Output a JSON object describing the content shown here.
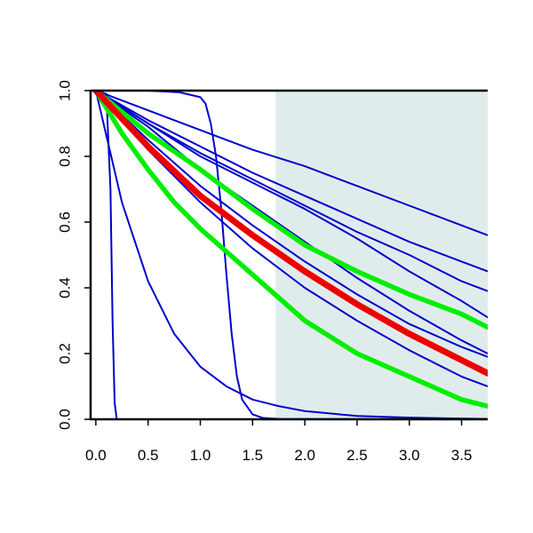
{
  "chart_data": {
    "type": "line",
    "title": "",
    "xlabel": "",
    "ylabel": "",
    "xlim": [
      -0.05,
      3.75
    ],
    "ylim": [
      0,
      1.0
    ],
    "grid": false,
    "shaded_region": {
      "x_start": 1.72,
      "x_end": 3.75,
      "color": "#e0ecec"
    },
    "x_ticks": [
      0.0,
      0.5,
      1.0,
      1.5,
      2.0,
      2.5,
      3.0,
      3.5
    ],
    "x_tick_labels": [
      "0.0",
      "0.5",
      "1.0",
      "1.5",
      "2.0",
      "2.5",
      "3.0",
      "3.5"
    ],
    "y_ticks": [
      0.0,
      0.2,
      0.4,
      0.6,
      0.8,
      1.0
    ],
    "y_tick_labels": [
      "0.0",
      "0.2",
      "0.4",
      "0.6",
      "0.8",
      "1.0"
    ],
    "series": [
      {
        "color": "#0000cc",
        "width": "thin",
        "x": [
          0,
          0.1,
          0.14,
          0.16,
          0.18,
          0.2,
          3.75
        ],
        "y": [
          1.0,
          0.99,
          0.7,
          0.3,
          0.05,
          0.0,
          0.0
        ]
      },
      {
        "color": "#0000cc",
        "width": "thin",
        "x": [
          0,
          0.25,
          0.5,
          0.75,
          1.0,
          1.25,
          1.5,
          1.75,
          2.0,
          2.5,
          3.0,
          3.75
        ],
        "y": [
          1.0,
          0.66,
          0.42,
          0.26,
          0.16,
          0.1,
          0.06,
          0.04,
          0.025,
          0.01,
          0.005,
          0.001
        ]
      },
      {
        "color": "#0000cc",
        "width": "thin",
        "x": [
          0,
          0.5,
          0.8,
          1.0,
          1.05,
          1.1,
          1.15,
          1.2,
          1.25,
          1.3,
          1.35,
          1.4,
          1.5,
          1.6,
          1.75,
          3.75
        ],
        "y": [
          1.0,
          1.0,
          0.995,
          0.98,
          0.96,
          0.9,
          0.8,
          0.64,
          0.44,
          0.26,
          0.13,
          0.06,
          0.015,
          0.004,
          0.001,
          0.0
        ]
      },
      {
        "color": "#0000cc",
        "width": "thin",
        "x": [
          0,
          0.5,
          1.0,
          1.5,
          2.0,
          2.5,
          3.0,
          3.5,
          3.75
        ],
        "y": [
          1.0,
          0.9,
          0.8,
          0.72,
          0.64,
          0.55,
          0.45,
          0.36,
          0.31
        ]
      },
      {
        "color": "#0000cc",
        "width": "thin",
        "x": [
          0,
          0.5,
          1.0,
          1.5,
          2.0,
          2.5,
          3.0,
          3.5,
          3.75
        ],
        "y": [
          1.0,
          0.85,
          0.71,
          0.59,
          0.48,
          0.38,
          0.29,
          0.22,
          0.19
        ]
      },
      {
        "color": "#0000cc",
        "width": "thin",
        "x": [
          0,
          0.5,
          1.0,
          1.5,
          2.0,
          2.5,
          3.0,
          3.5,
          3.75
        ],
        "y": [
          1.0,
          0.89,
          0.76,
          0.65,
          0.54,
          0.43,
          0.33,
          0.24,
          0.2
        ]
      },
      {
        "color": "#0000cc",
        "width": "thin",
        "x": [
          0,
          0.5,
          1.0,
          1.5,
          2.0,
          2.5,
          3.0,
          3.5,
          3.75
        ],
        "y": [
          1.0,
          0.82,
          0.66,
          0.52,
          0.4,
          0.3,
          0.21,
          0.13,
          0.1
        ]
      },
      {
        "color": "#0000cc",
        "width": "thin",
        "x": [
          0,
          0.5,
          1.0,
          1.5,
          2.0,
          2.5,
          3.0,
          3.5,
          3.75
        ],
        "y": [
          1.0,
          0.9,
          0.81,
          0.73,
          0.65,
          0.57,
          0.5,
          0.42,
          0.39
        ]
      },
      {
        "color": "#0000cc",
        "width": "thin",
        "x": [
          0,
          0.5,
          1.0,
          1.5,
          2.0,
          2.5,
          3.0,
          3.5,
          3.75
        ],
        "y": [
          1.0,
          0.91,
          0.83,
          0.75,
          0.68,
          0.61,
          0.54,
          0.48,
          0.45
        ]
      },
      {
        "color": "#0000cc",
        "width": "thin",
        "x": [
          0,
          0.5,
          1.0,
          1.5,
          2.0,
          2.5,
          3.0,
          3.5,
          3.75
        ],
        "y": [
          1.0,
          0.94,
          0.88,
          0.82,
          0.77,
          0.71,
          0.65,
          0.59,
          0.56
        ]
      },
      {
        "color": "#00ee00",
        "width": "thick",
        "x": [
          0,
          0.25,
          0.5,
          0.75,
          1.0,
          1.5,
          2.0,
          2.5,
          3.0,
          3.5,
          3.75
        ],
        "y": [
          1.0,
          0.87,
          0.76,
          0.66,
          0.58,
          0.44,
          0.3,
          0.2,
          0.13,
          0.06,
          0.04
        ]
      },
      {
        "color": "#00ee00",
        "width": "thick",
        "x": [
          0,
          0.5,
          1.0,
          1.5,
          2.0,
          2.5,
          3.0,
          3.5,
          3.75
        ],
        "y": [
          1.0,
          0.87,
          0.76,
          0.64,
          0.53,
          0.45,
          0.38,
          0.32,
          0.28
        ]
      },
      {
        "color": "#ee0000",
        "width": "thickest",
        "x": [
          0,
          0.5,
          1.0,
          1.5,
          2.0,
          2.5,
          3.0,
          3.5,
          3.75
        ],
        "y": [
          1.0,
          0.83,
          0.68,
          0.56,
          0.45,
          0.35,
          0.26,
          0.18,
          0.14
        ]
      }
    ]
  }
}
